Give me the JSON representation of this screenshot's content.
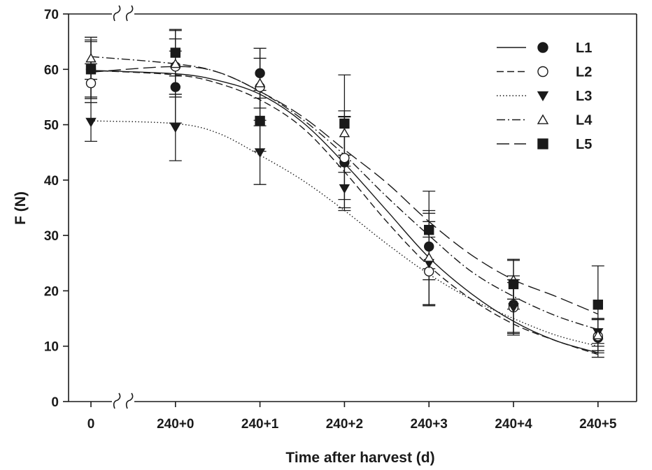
{
  "chart_data": {
    "type": "line",
    "title": "",
    "xlabel": "Time after harvest (d)",
    "ylabel": "F (N)",
    "categories": [
      "0",
      "240+0",
      "240+1",
      "240+2",
      "240+3",
      "240+4",
      "240+5"
    ],
    "x": [
      0,
      1,
      2,
      3,
      4,
      5,
      6
    ],
    "ylim": [
      0,
      70
    ],
    "yticks": [
      0,
      10,
      20,
      30,
      40,
      50,
      60,
      70
    ],
    "axis_break": true,
    "grid": false,
    "legend_position": "top-right",
    "series": [
      {
        "name": "L1",
        "line_style": "solid",
        "marker": "filled-circle",
        "values": [
          60.0,
          56.8,
          59.3,
          43.2,
          28.0,
          17.5,
          11.5
        ],
        "errors": [
          5.3,
          6.5,
          4.5,
          8.2,
          6.0,
          5.2,
          3.5
        ],
        "fit": {
          "x": [
            0,
            1,
            1.5,
            2,
            2.5,
            3,
            3.5,
            4,
            4.5,
            5,
            5.5,
            6
          ],
          "y": [
            59.8,
            59.2,
            58.0,
            55.5,
            50.5,
            43.0,
            34.5,
            26.0,
            19.5,
            14.5,
            11.0,
            8.8
          ]
        }
      },
      {
        "name": "L2",
        "line_style": "dashed",
        "marker": "open-circle",
        "values": [
          57.5,
          60.5,
          56.8,
          44.0,
          23.5,
          17.0,
          11.8
        ],
        "errors": [
          3.5,
          5.0,
          7.0,
          7.5,
          6.2,
          4.5,
          3.0
        ],
        "fit": {
          "x": [
            0,
            1,
            1.5,
            2,
            2.5,
            3,
            3.5,
            4,
            4.5,
            5,
            5.5,
            6
          ],
          "y": [
            59.8,
            59.0,
            57.5,
            54.5,
            49.5,
            41.5,
            32.5,
            24.5,
            18.5,
            14.0,
            11.0,
            8.5
          ]
        }
      },
      {
        "name": "L3",
        "line_style": "dotted",
        "marker": "filled-triangle-down",
        "values": [
          50.5,
          49.5,
          45.0,
          38.5,
          25.0,
          17.0,
          12.5
        ],
        "errors": [
          3.5,
          6.0,
          5.8,
          4.0,
          7.5,
          5.0,
          2.5
        ],
        "fit": {
          "x": [
            0,
            1,
            1.5,
            2,
            2.5,
            3,
            3.5,
            4,
            4.5,
            5,
            5.5,
            6
          ],
          "y": [
            50.7,
            50.2,
            48.5,
            44.5,
            40.0,
            34.5,
            28.5,
            23.0,
            18.5,
            15.0,
            12.0,
            10.0
          ]
        }
      },
      {
        "name": "L4",
        "line_style": "dash-dot",
        "marker": "open-triangle-up",
        "values": [
          62.0,
          61.0,
          57.5,
          48.5,
          26.0,
          22.0,
          12.0
        ],
        "errors": [
          3.8,
          6.0,
          4.5,
          4.0,
          8.5,
          3.5,
          2.8
        ],
        "fit": {
          "x": [
            0,
            1,
            1.5,
            2,
            2.5,
            3,
            3.5,
            4,
            4.5,
            5,
            5.5,
            6
          ],
          "y": [
            62.3,
            61.0,
            59.5,
            56.0,
            51.0,
            44.5,
            37.0,
            30.0,
            23.5,
            19.0,
            15.5,
            13.0
          ]
        }
      },
      {
        "name": "L5",
        "line_style": "long-dash",
        "marker": "filled-square",
        "values": [
          60.0,
          63.0,
          50.7,
          50.2,
          31.0,
          21.2,
          17.5
        ],
        "errors": [
          5.0,
          4.2,
          5.5,
          8.8,
          7.0,
          4.5,
          7.0
        ],
        "fit": {
          "x": [
            0,
            1,
            1.5,
            2,
            2.5,
            3,
            3.5,
            4,
            4.5,
            5,
            5.5,
            6
          ],
          "y": [
            59.5,
            60.5,
            59.5,
            56.0,
            51.5,
            45.5,
            39.5,
            32.5,
            26.5,
            22.0,
            19.0,
            15.8
          ]
        }
      }
    ]
  }
}
